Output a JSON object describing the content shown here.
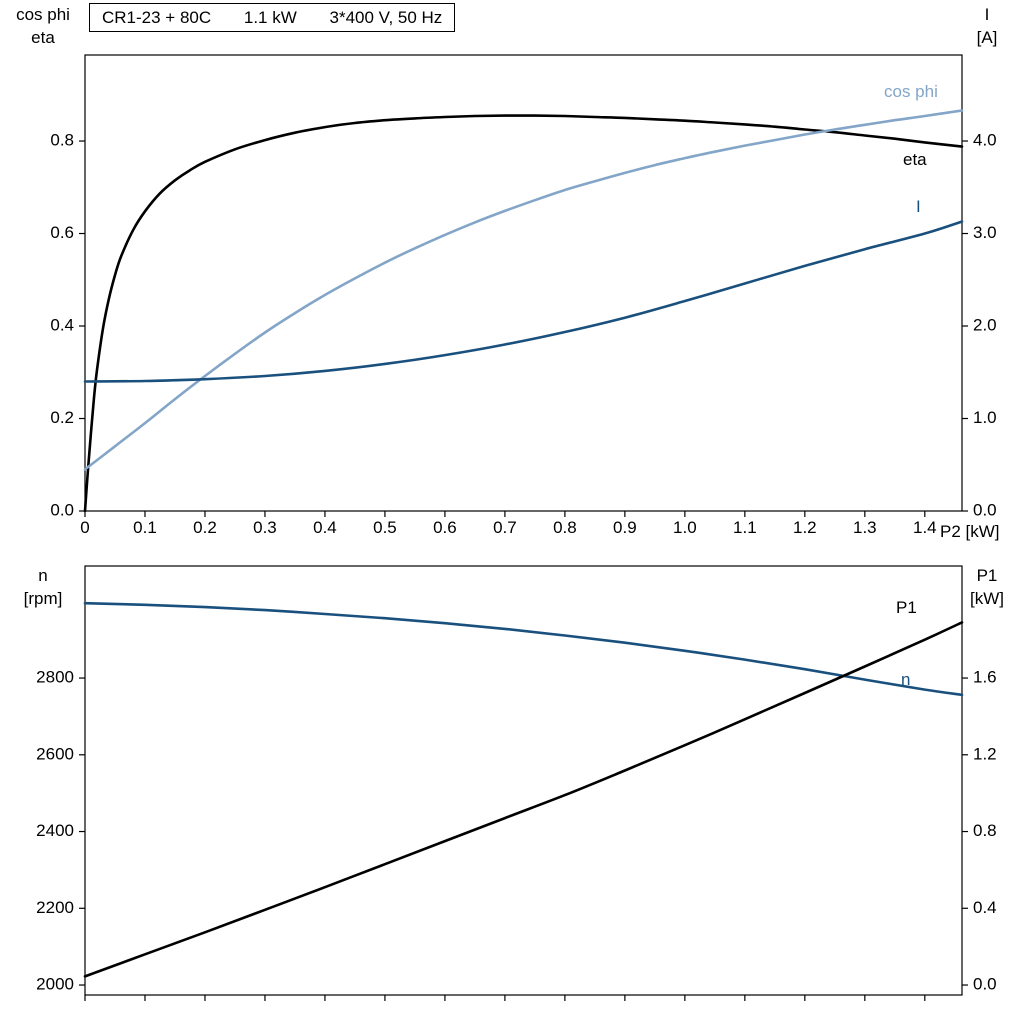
{
  "title_box": {
    "model": "CR1-23 + 80C",
    "power": "1.1 kW",
    "supply": "3*400 V, 50 Hz"
  },
  "colors": {
    "black": "#000000",
    "dark_blue": "#1a507e",
    "light_blue": "#83a5c7",
    "axis": "#000000",
    "background": "#ffffff"
  },
  "labels": {
    "top_left_line1": "cos phi",
    "top_left_line2": "eta",
    "top_right_line1": "I",
    "top_right_line2": "[A]",
    "bottom_left_line1": "n",
    "bottom_left_line2": "[rpm]",
    "bottom_right_line1": "P1",
    "bottom_right_line2": "[kW]"
  },
  "chart_data": [
    {
      "type": "line",
      "grid": false,
      "x_axis": {
        "label": "P2 [kW]",
        "range": [
          0,
          1.462
        ],
        "ticks": [
          0,
          0.1,
          0.2,
          0.3,
          0.4,
          0.5,
          0.6,
          0.7,
          0.8,
          0.9,
          1.0,
          1.1,
          1.2,
          1.3,
          1.4
        ],
        "tick_labels": [
          "0",
          "0.1",
          "0.2",
          "0.3",
          "0.4",
          "0.5",
          "0.6",
          "0.7",
          "0.8",
          "0.9",
          "1.0",
          "1.1",
          "1.2",
          "1.3",
          "1.4"
        ],
        "show_labels": true
      },
      "y_left": {
        "label": "cos phi / eta",
        "range": [
          0,
          0.986
        ],
        "ticks": [
          0.0,
          0.2,
          0.4,
          0.6,
          0.8
        ],
        "tick_labels": [
          "0.0",
          "0.2",
          "0.4",
          "0.6",
          "0.8"
        ]
      },
      "y_right": {
        "label": "I [A]",
        "range": [
          0,
          4.93
        ],
        "ticks": [
          0.0,
          1.0,
          2.0,
          3.0,
          4.0
        ],
        "tick_labels": [
          "0.0",
          "1.0",
          "2.0",
          "3.0",
          "4.0"
        ]
      },
      "series": [
        {
          "name": "eta",
          "axis": "left",
          "color_key": "black",
          "points": [
            [
              0,
              0
            ],
            [
              0.005,
              0.09
            ],
            [
              0.01,
              0.17
            ],
            [
              0.015,
              0.245
            ],
            [
              0.02,
              0.305
            ],
            [
              0.03,
              0.395
            ],
            [
              0.04,
              0.46
            ],
            [
              0.05,
              0.51
            ],
            [
              0.06,
              0.55
            ],
            [
              0.08,
              0.607
            ],
            [
              0.1,
              0.648
            ],
            [
              0.125,
              0.687
            ],
            [
              0.15,
              0.715
            ],
            [
              0.175,
              0.737
            ],
            [
              0.2,
              0.755
            ],
            [
              0.25,
              0.782
            ],
            [
              0.3,
              0.802
            ],
            [
              0.35,
              0.818
            ],
            [
              0.4,
              0.83
            ],
            [
              0.45,
              0.839
            ],
            [
              0.5,
              0.845
            ],
            [
              0.55,
              0.849
            ],
            [
              0.6,
              0.852
            ],
            [
              0.65,
              0.854
            ],
            [
              0.7,
              0.855
            ],
            [
              0.75,
              0.855
            ],
            [
              0.8,
              0.854
            ],
            [
              0.85,
              0.852
            ],
            [
              0.9,
              0.85
            ],
            [
              0.95,
              0.847
            ],
            [
              1.0,
              0.844
            ],
            [
              1.05,
              0.84
            ],
            [
              1.1,
              0.836
            ],
            [
              1.15,
              0.831
            ],
            [
              1.2,
              0.825
            ],
            [
              1.25,
              0.819
            ],
            [
              1.3,
              0.812
            ],
            [
              1.35,
              0.805
            ],
            [
              1.4,
              0.797
            ],
            [
              1.462,
              0.788
            ]
          ]
        },
        {
          "name": "cos phi",
          "axis": "left",
          "color_key": "light_blue",
          "points": [
            [
              0,
              0.09
            ],
            [
              0.05,
              0.14
            ],
            [
              0.1,
              0.19
            ],
            [
              0.15,
              0.242
            ],
            [
              0.2,
              0.292
            ],
            [
              0.25,
              0.34
            ],
            [
              0.3,
              0.386
            ],
            [
              0.35,
              0.428
            ],
            [
              0.4,
              0.467
            ],
            [
              0.45,
              0.503
            ],
            [
              0.5,
              0.537
            ],
            [
              0.55,
              0.568
            ],
            [
              0.6,
              0.597
            ],
            [
              0.65,
              0.624
            ],
            [
              0.7,
              0.649
            ],
            [
              0.75,
              0.672
            ],
            [
              0.8,
              0.694
            ],
            [
              0.85,
              0.713
            ],
            [
              0.9,
              0.731
            ],
            [
              0.95,
              0.748
            ],
            [
              1.0,
              0.763
            ],
            [
              1.05,
              0.777
            ],
            [
              1.1,
              0.79
            ],
            [
              1.15,
              0.802
            ],
            [
              1.2,
              0.814
            ],
            [
              1.25,
              0.825
            ],
            [
              1.3,
              0.835
            ],
            [
              1.35,
              0.845
            ],
            [
              1.4,
              0.854
            ],
            [
              1.462,
              0.866
            ]
          ]
        },
        {
          "name": "I",
          "axis": "right",
          "color_key": "dark_blue",
          "points": [
            [
              0,
              1.4
            ],
            [
              0.1,
              1.405
            ],
            [
              0.2,
              1.425
            ],
            [
              0.3,
              1.46
            ],
            [
              0.4,
              1.515
            ],
            [
              0.5,
              1.59
            ],
            [
              0.6,
              1.685
            ],
            [
              0.7,
              1.8
            ],
            [
              0.8,
              1.935
            ],
            [
              0.9,
              2.09
            ],
            [
              1.0,
              2.27
            ],
            [
              1.1,
              2.46
            ],
            [
              1.2,
              2.65
            ],
            [
              1.3,
              2.83
            ],
            [
              1.4,
              3.0
            ],
            [
              1.462,
              3.13
            ]
          ]
        }
      ]
    },
    {
      "type": "line",
      "grid": false,
      "x_axis": {
        "label": "",
        "range": [
          0,
          1.462
        ],
        "ticks": [
          0,
          0.1,
          0.2,
          0.3,
          0.4,
          0.5,
          0.6,
          0.7,
          0.8,
          0.9,
          1.0,
          1.1,
          1.2,
          1.3,
          1.4
        ],
        "tick_labels": [],
        "show_labels": false
      },
      "y_left": {
        "label": "n [rpm]",
        "range": [
          1974,
          3092
        ],
        "ticks": [
          2000,
          2200,
          2400,
          2600,
          2800
        ],
        "tick_labels": [
          "2000",
          "2200",
          "2400",
          "2600",
          "2800"
        ]
      },
      "y_right": {
        "label": "P1 [kW]",
        "range": [
          -0.052,
          2.184
        ],
        "ticks": [
          0.0,
          0.4,
          0.8,
          1.2,
          1.6
        ],
        "tick_labels": [
          "0.0",
          "0.4",
          "0.8",
          "1.2",
          "1.6"
        ]
      },
      "series": [
        {
          "name": "n",
          "axis": "left",
          "color_key": "dark_blue",
          "points": [
            [
              0,
              2995
            ],
            [
              0.1,
              2991
            ],
            [
              0.2,
              2985
            ],
            [
              0.3,
              2977
            ],
            [
              0.4,
              2967
            ],
            [
              0.5,
              2956
            ],
            [
              0.6,
              2943
            ],
            [
              0.7,
              2928
            ],
            [
              0.8,
              2911
            ],
            [
              0.9,
              2892
            ],
            [
              1.0,
              2871
            ],
            [
              1.1,
              2848
            ],
            [
              1.2,
              2823
            ],
            [
              1.3,
              2796
            ],
            [
              1.4,
              2770
            ],
            [
              1.462,
              2756
            ]
          ]
        },
        {
          "name": "P1",
          "axis": "right",
          "color_key": "black",
          "points": [
            [
              0,
              0.045
            ],
            [
              0.1,
              0.16
            ],
            [
              0.2,
              0.275
            ],
            [
              0.3,
              0.392
            ],
            [
              0.4,
              0.51
            ],
            [
              0.5,
              0.63
            ],
            [
              0.6,
              0.75
            ],
            [
              0.7,
              0.87
            ],
            [
              0.8,
              0.99
            ],
            [
              0.9,
              1.118
            ],
            [
              1.0,
              1.25
            ],
            [
              1.1,
              1.385
            ],
            [
              1.2,
              1.522
            ],
            [
              1.3,
              1.66
            ],
            [
              1.4,
              1.8
            ],
            [
              1.462,
              1.89
            ]
          ]
        }
      ]
    }
  ]
}
